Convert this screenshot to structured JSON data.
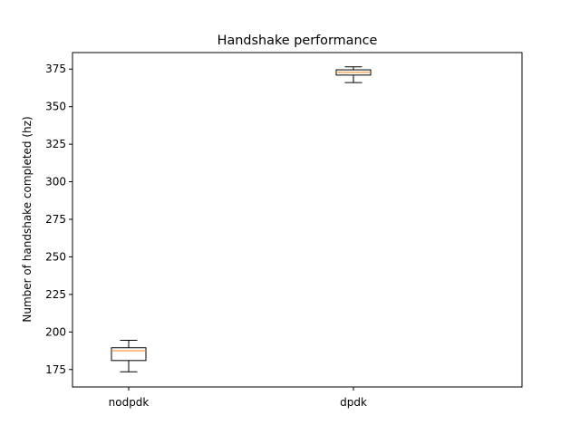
{
  "chart_data": {
    "type": "boxplot",
    "title": "Handshake performance",
    "xlabel": "",
    "ylabel": "Number of handshake completed (hz)",
    "categories": [
      "nodpdk",
      "dpdk"
    ],
    "boxes": [
      {
        "category": "nodpdk",
        "whisker_low": 173.5,
        "q1": 181.0,
        "median": 187.5,
        "q3": 189.5,
        "whisker_high": 194.5
      },
      {
        "category": "dpdk",
        "whisker_low": 366.0,
        "q1": 371.0,
        "median": 372.8,
        "q3": 374.5,
        "whisker_high": 376.5
      }
    ],
    "ylim": [
      163.4,
      386.0
    ],
    "yticks": [
      175,
      200,
      225,
      250,
      275,
      300,
      325,
      350,
      375
    ],
    "grid": false,
    "colors": {
      "box": "#000000",
      "median": "#ff7f0e",
      "whisker": "#000000",
      "axes": "#000000"
    }
  }
}
